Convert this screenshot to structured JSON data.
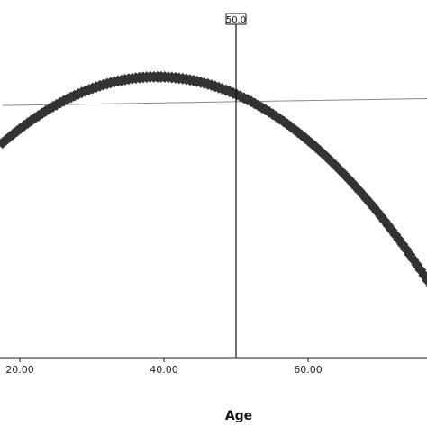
{
  "chart_data": {
    "type": "scatter",
    "title": "",
    "xlabel": "Age",
    "ylabel": "",
    "xlim": [
      17.6,
      79.0
    ],
    "ylim": [
      0,
      100
    ],
    "x_tick_labels": [
      "20.00",
      "40.00",
      "60.00"
    ],
    "x_ticks": [
      20,
      40,
      60
    ],
    "grid": false,
    "reference_line": {
      "axis": "x",
      "value": 50.0,
      "label": "50.0"
    },
    "fit_line": {
      "x": [
        17.6,
        79.0
      ],
      "y": [
        70.5,
        72.5
      ]
    },
    "series": [
      {
        "marker": "diamond",
        "color": "#333333",
        "x_start": 17.6,
        "x_end": 78.5,
        "x_step": 0.5,
        "curve": {
          "form": "quadratic",
          "vertex_x": 39,
          "vertex_y": 78.5,
          "a": -0.0403
        }
      }
    ]
  },
  "colors": {
    "marker": "#333333",
    "axis": "#222222",
    "reference_line": "#111111",
    "fit_line": "#888888"
  }
}
